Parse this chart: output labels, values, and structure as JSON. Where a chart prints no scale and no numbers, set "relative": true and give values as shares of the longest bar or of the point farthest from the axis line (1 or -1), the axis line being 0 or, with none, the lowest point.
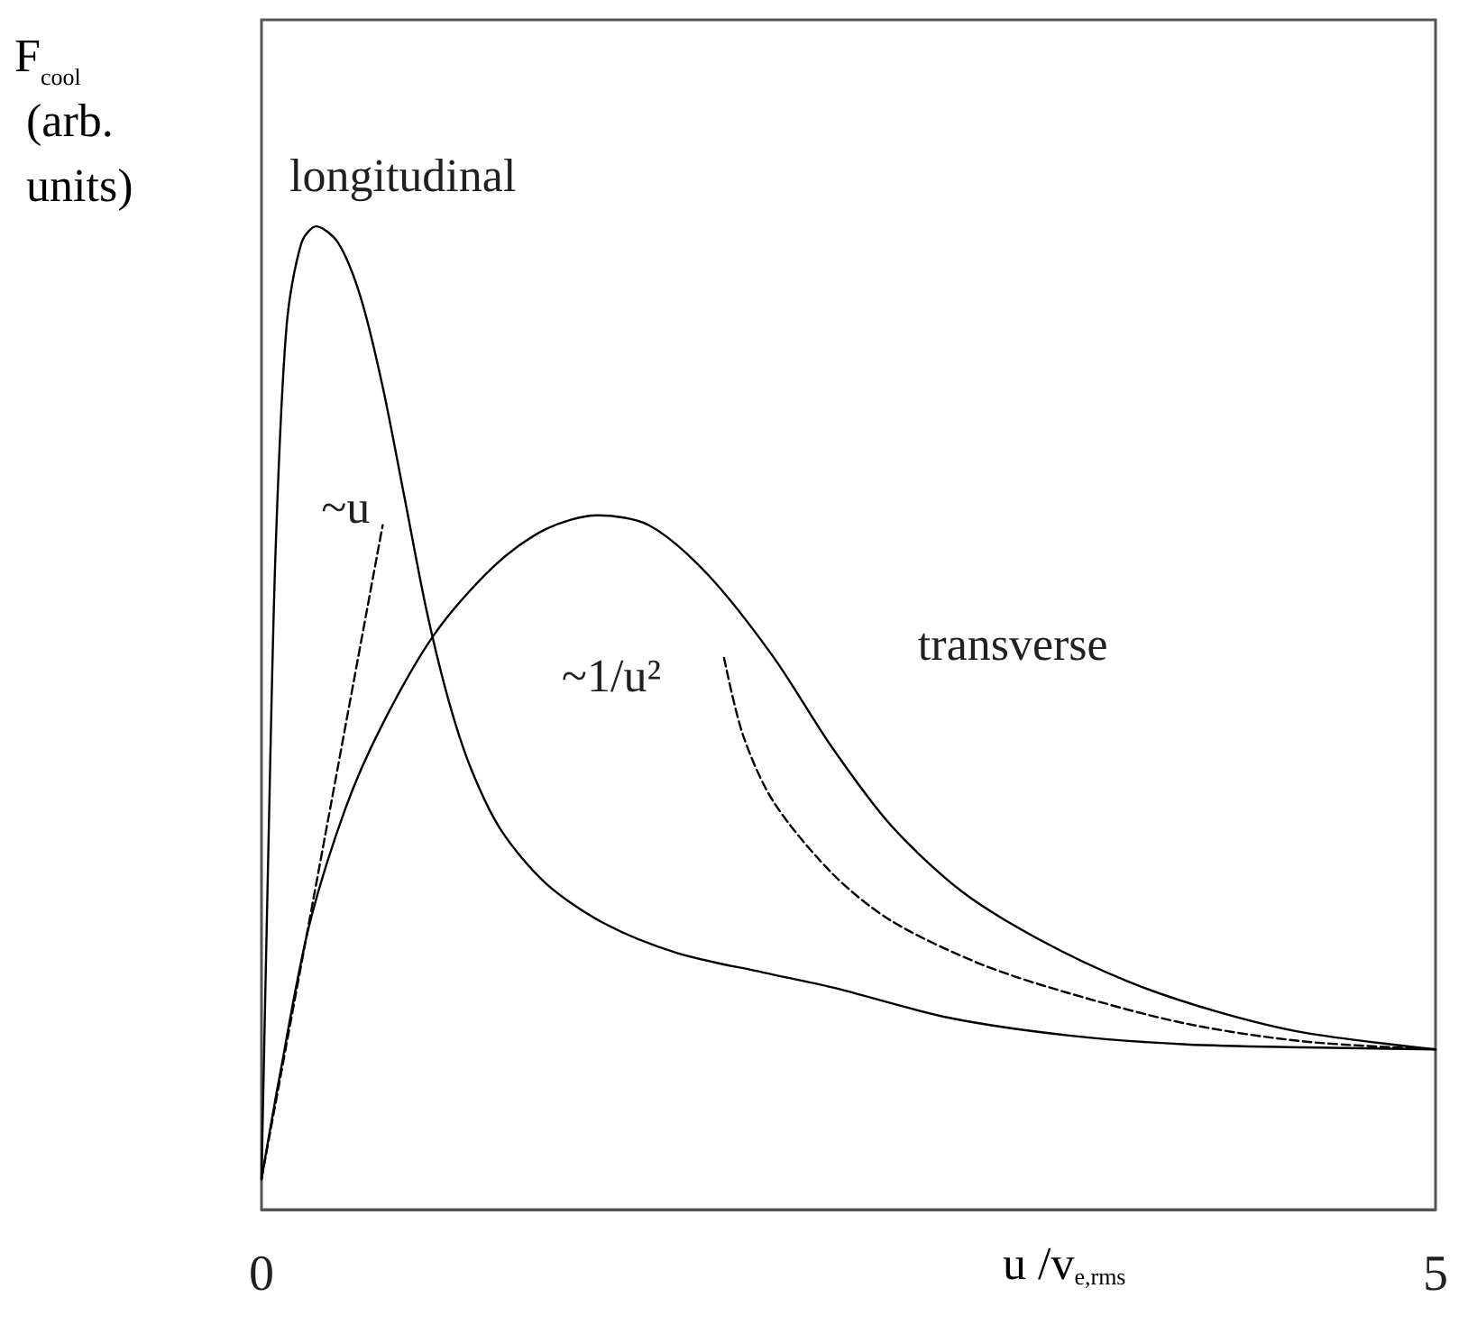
{
  "chart_data": {
    "type": "line",
    "relative": true,
    "xlabel": "u /v$_{e,rms}$",
    "ylabel": "F$_{cool}$ (arb. units)",
    "xlim": [
      0,
      5
    ],
    "xticks": [
      0,
      5
    ],
    "grid": false,
    "legend": false,
    "marker": "none",
    "series": [
      {
        "name": "longitudinal",
        "color": "#000000",
        "line_style": "solid",
        "x": [
          0,
          0.029,
          0.06,
          0.107,
          0.17,
          0.233,
          0.327,
          0.422,
          0.516,
          0.61,
          0.705,
          0.799,
          0.893,
          1.02,
          1.21,
          1.46,
          1.77,
          2.14,
          2.43,
          2.93,
          3.44,
          3.94,
          4.44,
          5.0
        ],
        "values": [
          0.031,
          0.363,
          0.67,
          0.899,
          0.983,
          1,
          0.983,
          0.928,
          0.837,
          0.723,
          0.607,
          0.516,
          0.448,
          0.386,
          0.332,
          0.291,
          0.261,
          0.241,
          0.226,
          0.195,
          0.177,
          0.168,
          0.165,
          0.163
        ]
      },
      {
        "name": "transverse",
        "color": "#000000",
        "line_style": "solid",
        "x": [
          0,
          0.076,
          0.201,
          0.359,
          0.516,
          0.736,
          0.988,
          1.21,
          1.43,
          1.65,
          1.9,
          2.18,
          2.43,
          2.68,
          2.98,
          3.31,
          3.69,
          4.06,
          4.44,
          5.0
        ],
        "values": [
          0.031,
          0.134,
          0.287,
          0.409,
          0.494,
          0.585,
          0.654,
          0.692,
          0.706,
          0.696,
          0.646,
          0.562,
          0.47,
          0.391,
          0.324,
          0.275,
          0.232,
          0.202,
          0.18,
          0.163
        ]
      },
      {
        "name": "~u",
        "color": "#000000",
        "line_style": "dashed",
        "x": [
          0,
          0.516
        ],
        "values": [
          0.031,
          0.696
        ]
      },
      {
        "name": "~1/u²",
        "color": "#000000",
        "line_style": "dashed",
        "x": [
          1.97,
          2.05,
          2.18,
          2.43,
          2.68,
          3.06,
          3.44,
          3.94,
          4.44,
          5.0
        ],
        "values": [
          0.561,
          0.483,
          0.415,
          0.342,
          0.294,
          0.25,
          0.22,
          0.189,
          0.171,
          0.163
        ]
      }
    ]
  }
}
